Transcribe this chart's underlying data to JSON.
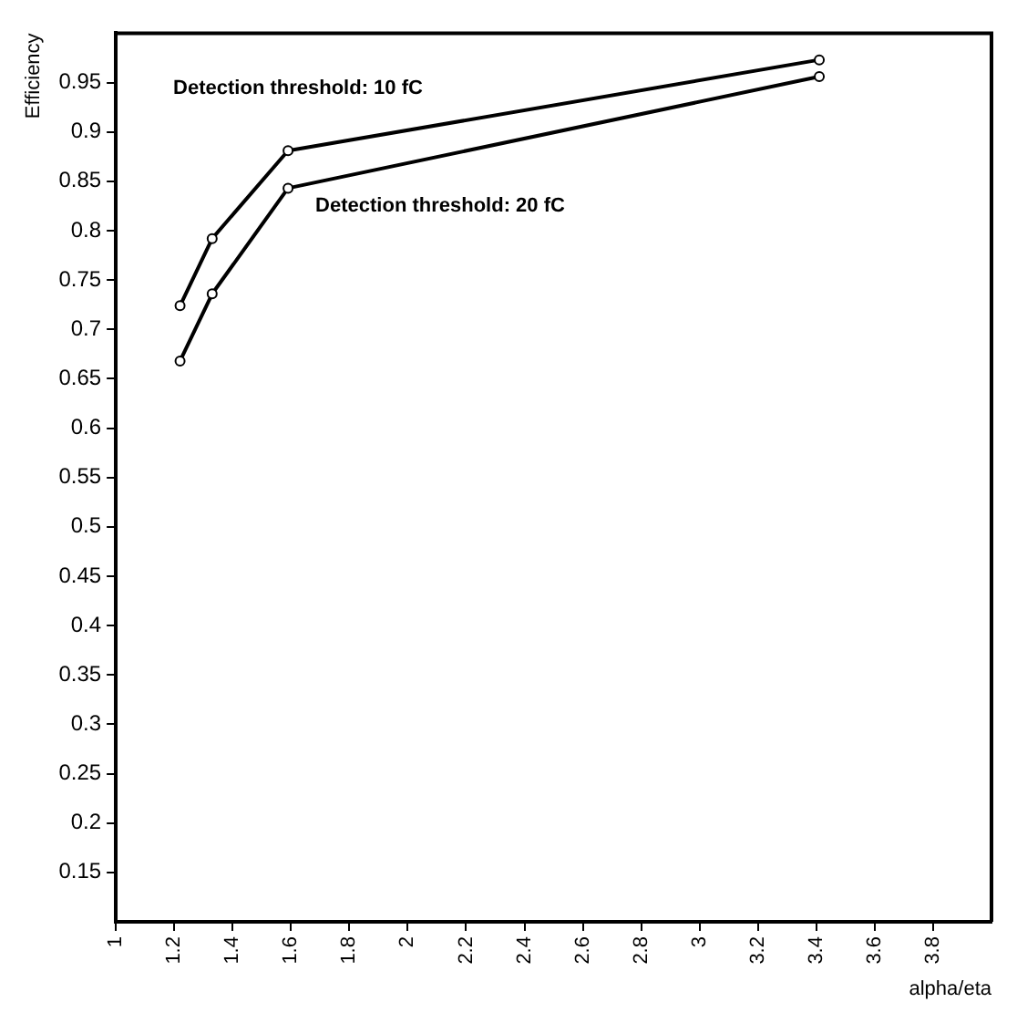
{
  "chart_data": {
    "type": "line",
    "xlabel": "alpha/eta",
    "ylabel": "Efficiency",
    "xlim": [
      1,
      4
    ],
    "xticks": [
      1,
      1.2,
      1.4,
      1.6,
      1.8,
      2,
      2.2,
      2.4,
      2.6,
      2.8,
      3,
      3.2,
      3.4,
      3.6,
      3.8
    ],
    "ylim": [
      0.1,
      1.0
    ],
    "yticks": [
      0.15,
      0.2,
      0.25,
      0.3,
      0.35,
      0.4,
      0.45,
      0.5,
      0.55,
      0.6,
      0.65,
      0.7,
      0.75,
      0.8,
      0.85,
      0.9,
      0.95
    ],
    "grid": false,
    "marker": "circle",
    "line_style": "solid",
    "series": [
      {
        "name": "Detection threshold: 10 fC",
        "color": "#000000",
        "x": [
          1.22,
          1.33,
          1.59,
          3.41
        ],
        "values": [
          0.724,
          0.792,
          0.881,
          0.973
        ]
      },
      {
        "name": "Detection threshold: 20 fC",
        "color": "#000000",
        "x": [
          1.22,
          1.33,
          1.59,
          3.41
        ],
        "values": [
          0.668,
          0.736,
          0.843,
          0.956
        ]
      }
    ]
  }
}
